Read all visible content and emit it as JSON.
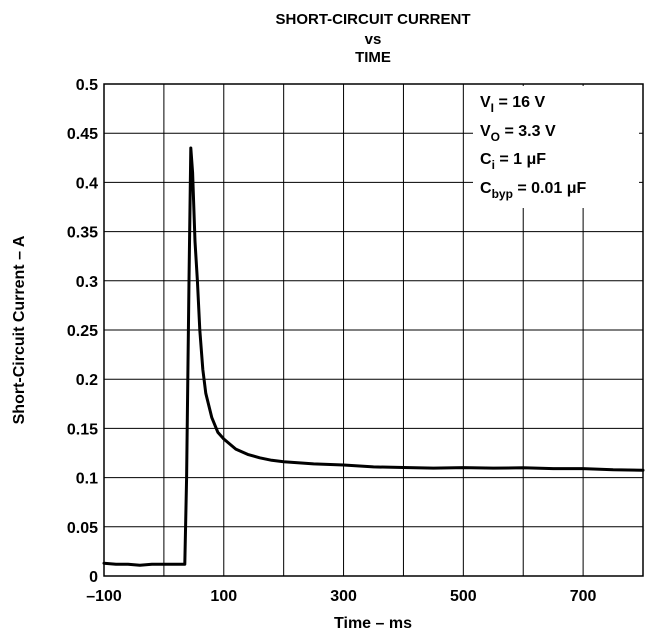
{
  "chart_data": {
    "type": "line",
    "title": [
      "SHORT-CIRCUIT CURRENT",
      "vs",
      "TIME"
    ],
    "xlabel": "Time – ms",
    "ylabel": "Short-Circuit Current – A",
    "xlim": [
      -100,
      800
    ],
    "ylim": [
      0,
      0.5
    ],
    "grid": true,
    "x_ticks": [
      -100,
      100,
      300,
      500,
      700
    ],
    "x_tick_labels": [
      "–100",
      "100",
      "300",
      "500",
      "700"
    ],
    "x_grid": [
      -100,
      0,
      100,
      200,
      300,
      400,
      500,
      600,
      700,
      800
    ],
    "y_ticks": [
      0,
      0.05,
      0.1,
      0.15,
      0.2,
      0.25,
      0.3,
      0.35,
      0.4,
      0.45,
      0.5
    ],
    "y_tick_labels": [
      "0",
      "0.05",
      "0.1",
      "0.15",
      "0.2",
      "0.25",
      "0.3",
      "0.35",
      "0.4",
      "0.45",
      "0.5"
    ],
    "annotations": [
      {
        "main": "V",
        "sub": "I",
        "rest": " = 16 V"
      },
      {
        "main": "V",
        "sub": "O",
        "rest": " = 3.3 V"
      },
      {
        "main": "C",
        "sub": "i",
        "rest": " = 1 μF"
      },
      {
        "main": "C",
        "sub": "byp",
        "rest": " = 0.01 μF"
      }
    ],
    "series": [
      {
        "color": "#000000",
        "x": [
          -100,
          -80,
          -60,
          -40,
          -20,
          0,
          20,
          35,
          38,
          42,
          45,
          48,
          52,
          56,
          60,
          65,
          70,
          80,
          90,
          100,
          120,
          140,
          160,
          180,
          200,
          250,
          300,
          350,
          400,
          450,
          500,
          550,
          600,
          650,
          700,
          750,
          800
        ],
        "y": [
          0.013,
          0.012,
          0.012,
          0.011,
          0.012,
          0.012,
          0.012,
          0.012,
          0.1,
          0.3,
          0.435,
          0.41,
          0.34,
          0.3,
          0.25,
          0.21,
          0.185,
          0.16,
          0.145,
          0.138,
          0.128,
          0.123,
          0.12,
          0.118,
          0.117,
          0.115,
          0.114,
          0.112,
          0.111,
          0.11,
          0.11,
          0.109,
          0.109,
          0.108,
          0.108,
          0.107,
          0.107
        ]
      }
    ]
  }
}
